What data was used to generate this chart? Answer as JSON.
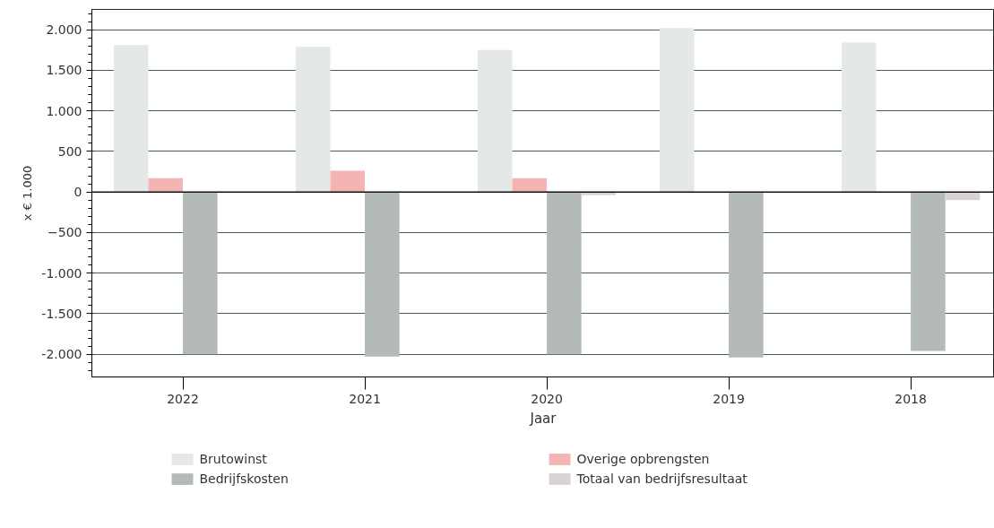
{
  "chart_data": {
    "type": "bar",
    "xlabel": "Jaar",
    "ylabel": "x € 1.000",
    "categories": [
      "2022",
      "2021",
      "2020",
      "2019",
      "2018"
    ],
    "series": [
      {
        "name": "Brutowinst",
        "color": "#e4e8e6",
        "values": [
          1810,
          1790,
          1750,
          2020,
          1840
        ]
      },
      {
        "name": "Overige opbrengsten",
        "color": "#f4b4b4",
        "values": [
          170,
          260,
          170,
          0,
          0
        ]
      },
      {
        "name": "Bedrijfskosten",
        "color": "#b4bab6",
        "values": [
          -2000,
          -2030,
          -2000,
          -2040,
          -1960
        ]
      },
      {
        "name": "Totaal van bedrijfsresultaat",
        "color": "#d8d2d6",
        "values": [
          0,
          0,
          -40,
          0,
          -100
        ]
      }
    ],
    "ylim": [
      -2280,
      2250
    ],
    "yticks": [
      {
        "value": -2000,
        "label": "-2.000"
      },
      {
        "value": -1500,
        "label": "-1.500"
      },
      {
        "value": -1000,
        "label": "-1.000"
      },
      -500,
      0,
      500,
      {
        "value": 1000,
        "label": "1.000"
      },
      {
        "value": 1500,
        "label": "1.500"
      },
      {
        "value": 2000,
        "label": "2.000"
      }
    ],
    "grid": "y",
    "legend": "bottom"
  }
}
